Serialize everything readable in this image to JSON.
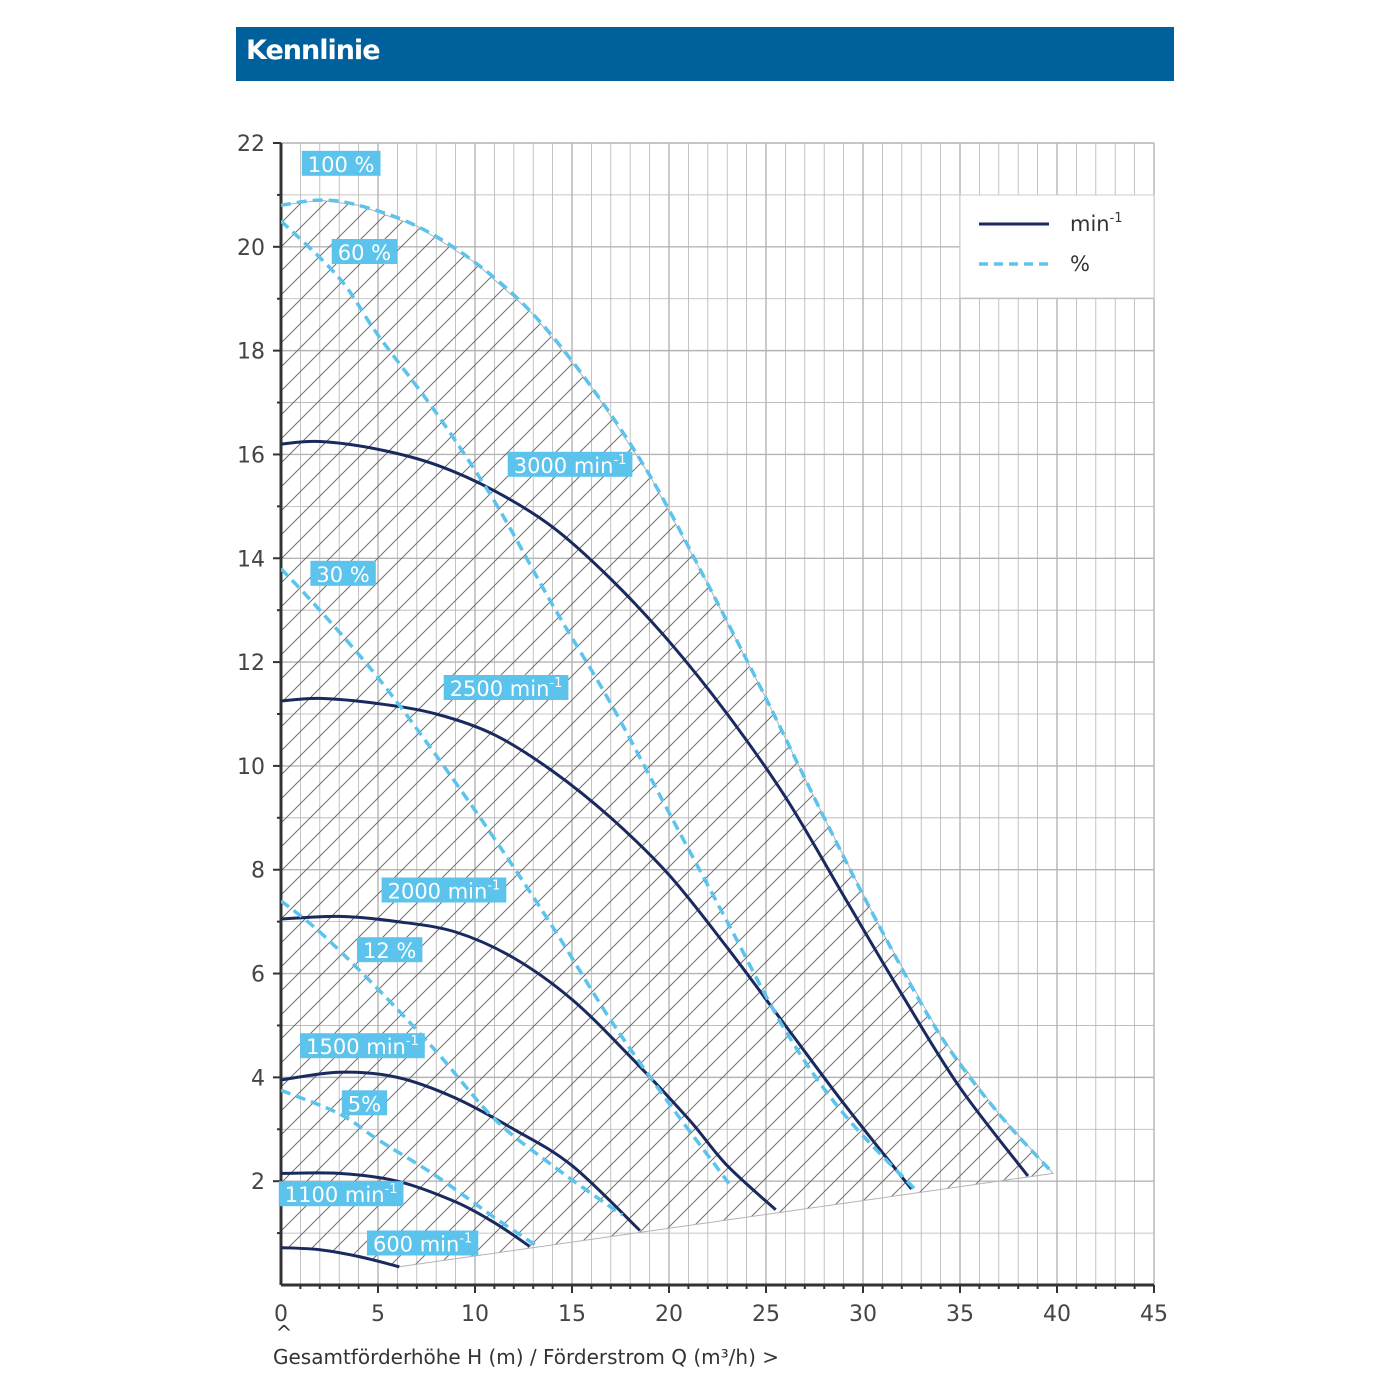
{
  "header": {
    "title": "Kennlinie"
  },
  "colors": {
    "header_bg": "#00609b",
    "rpm_line": "#1b2a5e",
    "percent_line": "#5bc3ec",
    "label_bg": "#5bc3ec",
    "grid": "#b4b4b4",
    "hatch": "#707070"
  },
  "chart_data": {
    "type": "line",
    "xlim": [
      0,
      45
    ],
    "ylim": [
      0,
      22
    ],
    "x_ticks": [
      0,
      5,
      10,
      15,
      20,
      25,
      30,
      35,
      40,
      45
    ],
    "y_ticks": [
      2,
      4,
      6,
      8,
      10,
      12,
      14,
      16,
      18,
      20,
      22
    ],
    "grid": true,
    "xlabel": "Gesamtförderhöhe H (m) / Förderstrom Q (m³/h) >",
    "x_axis_marker": "^",
    "legend": {
      "position": "top-right",
      "entries": [
        {
          "label": "min",
          "sup": "-1",
          "style": "solid"
        },
        {
          "label": "%",
          "sup": "",
          "style": "dashed"
        }
      ]
    },
    "series": [
      {
        "name": "3000",
        "unit": "min",
        "sup": "-1",
        "style": "solid",
        "label_at": [
          14.9,
          15.8
        ],
        "points": [
          [
            0,
            16.2
          ],
          [
            2,
            16.25
          ],
          [
            5,
            16.1
          ],
          [
            8,
            15.8
          ],
          [
            11,
            15.3
          ],
          [
            14,
            14.6
          ],
          [
            17,
            13.6
          ],
          [
            20,
            12.4
          ],
          [
            23,
            11.0
          ],
          [
            26,
            9.4
          ],
          [
            29,
            7.5
          ],
          [
            32,
            5.6
          ],
          [
            35,
            3.8
          ],
          [
            38.5,
            2.1
          ]
        ]
      },
      {
        "name": "2500",
        "unit": "min",
        "sup": "-1",
        "style": "solid",
        "label_at": [
          11.6,
          11.5
        ],
        "points": [
          [
            0,
            11.25
          ],
          [
            2,
            11.3
          ],
          [
            5,
            11.2
          ],
          [
            8,
            11.0
          ],
          [
            11,
            10.6
          ],
          [
            14,
            9.9
          ],
          [
            17,
            9.0
          ],
          [
            20,
            7.9
          ],
          [
            23,
            6.5
          ],
          [
            26,
            5.0
          ],
          [
            29,
            3.5
          ],
          [
            32.5,
            1.85
          ]
        ]
      },
      {
        "name": "2000",
        "unit": "min",
        "sup": "-1",
        "style": "solid",
        "label_at": [
          8.4,
          7.6
        ],
        "points": [
          [
            0,
            7.05
          ],
          [
            3,
            7.1
          ],
          [
            6,
            7.0
          ],
          [
            9,
            6.8
          ],
          [
            12,
            6.3
          ],
          [
            15,
            5.5
          ],
          [
            18,
            4.4
          ],
          [
            21,
            3.2
          ],
          [
            23,
            2.3
          ],
          [
            25.5,
            1.45
          ]
        ]
      },
      {
        "name": "1500",
        "unit": "min",
        "sup": "-1",
        "style": "solid",
        "label_at": [
          4.2,
          4.6
        ],
        "points": [
          [
            0,
            3.95
          ],
          [
            3,
            4.1
          ],
          [
            6,
            4.0
          ],
          [
            9,
            3.6
          ],
          [
            12,
            3.0
          ],
          [
            15,
            2.3
          ],
          [
            18.5,
            1.05
          ]
        ]
      },
      {
        "name": "1100",
        "unit": "min",
        "sup": "-1",
        "style": "solid",
        "label_at": [
          3.1,
          1.75
        ],
        "points": [
          [
            0,
            2.15
          ],
          [
            3,
            2.15
          ],
          [
            6,
            2.0
          ],
          [
            9,
            1.6
          ],
          [
            11,
            1.2
          ],
          [
            12.8,
            0.75
          ]
        ]
      },
      {
        "name": "600",
        "unit": "min",
        "sup": "-1",
        "style": "solid",
        "label_at": [
          7.3,
          0.8
        ],
        "points": [
          [
            0,
            0.72
          ],
          [
            2,
            0.68
          ],
          [
            4,
            0.55
          ],
          [
            6.1,
            0.35
          ]
        ]
      },
      {
        "name": "100 %",
        "unit": "",
        "sup": "",
        "style": "dashed",
        "label_at": [
          3.1,
          21.6
        ],
        "points": [
          [
            0,
            20.8
          ],
          [
            2,
            20.9
          ],
          [
            4,
            20.8
          ],
          [
            7,
            20.4
          ],
          [
            10,
            19.7
          ],
          [
            13,
            18.7
          ],
          [
            16,
            17.3
          ],
          [
            19,
            15.6
          ],
          [
            22,
            13.5
          ],
          [
            25,
            11.3
          ],
          [
            28,
            9.0
          ],
          [
            31,
            6.8
          ],
          [
            34,
            4.8
          ],
          [
            37,
            3.3
          ],
          [
            39.8,
            2.15
          ]
        ]
      },
      {
        "name": "60 %",
        "unit": "",
        "sup": "",
        "style": "dashed",
        "label_at": [
          4.3,
          19.9
        ],
        "points": [
          [
            0,
            20.5
          ],
          [
            3,
            19.4
          ],
          [
            5,
            18.3
          ],
          [
            8,
            16.8
          ],
          [
            11,
            15.1
          ],
          [
            14,
            13.1
          ],
          [
            17,
            11.2
          ],
          [
            20,
            9.1
          ],
          [
            23,
            7.0
          ],
          [
            26,
            4.9
          ],
          [
            29,
            3.3
          ],
          [
            32.8,
            1.8
          ]
        ]
      },
      {
        "name": "30 %",
        "unit": "",
        "sup": "",
        "style": "dashed",
        "label_at": [
          3.2,
          13.7
        ],
        "points": [
          [
            0,
            13.8
          ],
          [
            2,
            13.0
          ],
          [
            5,
            11.7
          ],
          [
            8,
            10.2
          ],
          [
            11,
            8.6
          ],
          [
            14,
            6.9
          ],
          [
            17,
            5.1
          ],
          [
            20,
            3.5
          ],
          [
            22.4,
            2.3
          ],
          [
            23.2,
            1.9
          ]
        ]
      },
      {
        "name": "12 %",
        "unit": "",
        "sup": "",
        "style": "dashed",
        "label_at": [
          5.6,
          6.45
        ],
        "points": [
          [
            0,
            7.4
          ],
          [
            2,
            6.8
          ],
          [
            5,
            5.7
          ],
          [
            8,
            4.5
          ],
          [
            11,
            3.2
          ],
          [
            14,
            2.3
          ],
          [
            17,
            1.5
          ],
          [
            17.6,
            1.35
          ]
        ]
      },
      {
        "name": "5%",
        "unit": "",
        "sup": "",
        "style": "dashed",
        "label_at": [
          4.3,
          3.5
        ],
        "points": [
          [
            0,
            3.75
          ],
          [
            3,
            3.3
          ],
          [
            5,
            2.8
          ],
          [
            8,
            2.1
          ],
          [
            11,
            1.3
          ],
          [
            13.2,
            0.75
          ]
        ]
      }
    ],
    "hatched_region": {
      "boundary": [
        [
          0,
          0.72
        ],
        [
          0,
          20.8
        ],
        [
          2,
          20.9
        ],
        [
          4,
          20.8
        ],
        [
          7,
          20.4
        ],
        [
          10,
          19.7
        ],
        [
          13,
          18.7
        ],
        [
          16,
          17.3
        ],
        [
          19,
          15.6
        ],
        [
          22,
          13.5
        ],
        [
          25,
          11.3
        ],
        [
          28,
          9.0
        ],
        [
          31,
          6.8
        ],
        [
          34,
          4.8
        ],
        [
          37,
          3.3
        ],
        [
          39.8,
          2.15
        ],
        [
          6.1,
          0.35
        ],
        [
          4,
          0.55
        ],
        [
          2,
          0.68
        ]
      ]
    }
  }
}
